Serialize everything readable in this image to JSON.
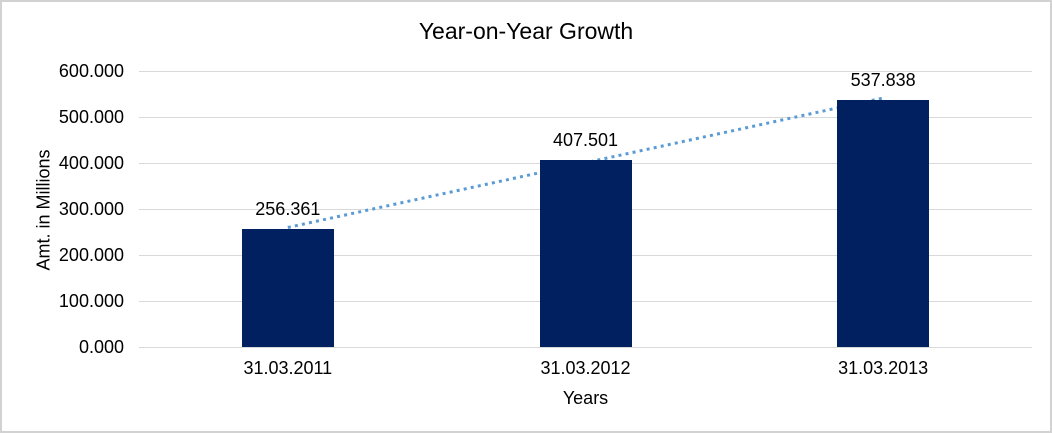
{
  "chart_data": {
    "type": "bar",
    "title": "Year-on-Year Growth",
    "xlabel": "Years",
    "ylabel": "Amt. in Millions",
    "categories": [
      "31.03.2011",
      "31.03.2012",
      "31.03.2013"
    ],
    "values": [
      256.361,
      407.501,
      537.838
    ],
    "data_labels": [
      "256.361",
      "407.501",
      "537.838"
    ],
    "ylim": [
      0,
      600
    ],
    "ytick_step": 100,
    "ytick_labels": [
      "0.000",
      "100.000",
      "200.000",
      "300.000",
      "400.000",
      "500.000",
      "600.000"
    ],
    "grid": true,
    "legend": "none",
    "trendline": {
      "type": "linear",
      "style": "dotted"
    },
    "colors": {
      "bar": "#002060",
      "trendline": "#5B9BD5",
      "gridline": "#D9D9D9",
      "text": "#000000",
      "background": "#FFFFFF",
      "frame_border": "#D2D2D2"
    }
  }
}
